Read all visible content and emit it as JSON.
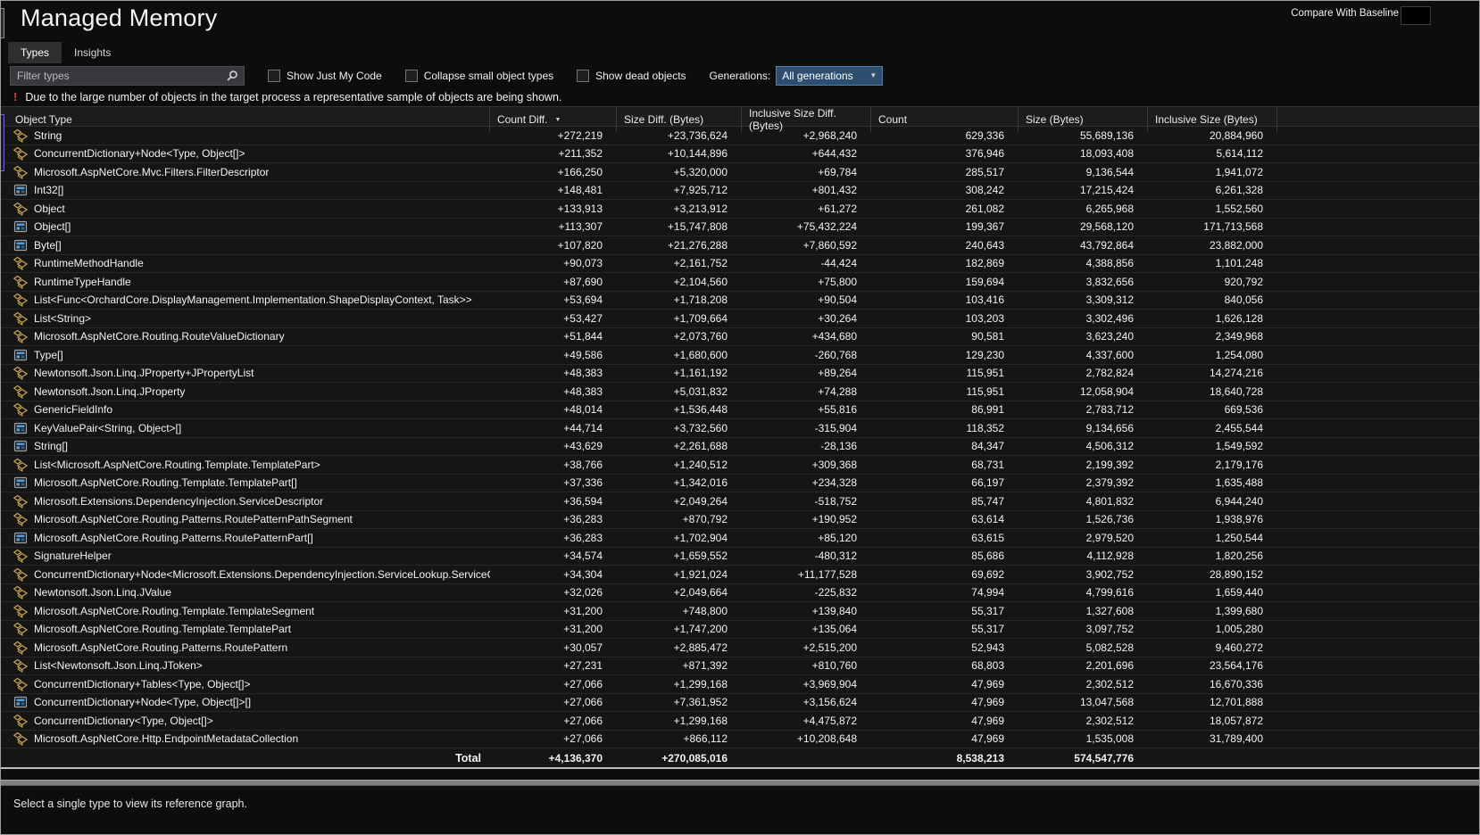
{
  "window": {
    "title": "Managed Memory",
    "compare_label": "Compare With Baseline"
  },
  "tabs": [
    {
      "label": "Types",
      "active": true
    },
    {
      "label": "Insights",
      "active": false
    }
  ],
  "toolbar": {
    "filter_placeholder": "Filter types",
    "checkboxes": [
      "Show Just My Code",
      "Collapse small object types",
      "Show dead objects"
    ],
    "generations_label": "Generations:",
    "generations_selected": "All generations"
  },
  "warning": "Due to the large number of objects in the target process a representative sample of objects are being shown.",
  "table": {
    "columns": [
      "Object Type",
      "Count Diff.",
      "Size Diff. (Bytes)",
      "Inclusive Size Diff. (Bytes)",
      "Count",
      "Size (Bytes)",
      "Inclusive Size (Bytes)"
    ],
    "sort_column": "Count Diff.",
    "sort_direction": "descending",
    "rows": [
      {
        "type": "String",
        "icon": "class",
        "values": [
          "+272,219",
          "+23,736,624",
          "+2,968,240",
          "629,336",
          "55,689,136",
          "20,884,960"
        ]
      },
      {
        "type": "ConcurrentDictionary+Node<Type, Object[]>",
        "icon": "class",
        "values": [
          "+211,352",
          "+10,144,896",
          "+644,432",
          "376,946",
          "18,093,408",
          "5,614,112"
        ]
      },
      {
        "type": "Microsoft.AspNetCore.Mvc.Filters.FilterDescriptor",
        "icon": "class",
        "values": [
          "+166,250",
          "+5,320,000",
          "+69,784",
          "285,517",
          "9,136,544",
          "1,941,072"
        ]
      },
      {
        "type": "Int32[]",
        "icon": "array",
        "values": [
          "+148,481",
          "+7,925,712",
          "+801,432",
          "308,242",
          "17,215,424",
          "6,261,328"
        ]
      },
      {
        "type": "Object",
        "icon": "class",
        "values": [
          "+133,913",
          "+3,213,912",
          "+61,272",
          "261,082",
          "6,265,968",
          "1,552,560"
        ]
      },
      {
        "type": "Object[]",
        "icon": "array",
        "values": [
          "+113,307",
          "+15,747,808",
          "+75,432,224",
          "199,367",
          "29,568,120",
          "171,713,568"
        ]
      },
      {
        "type": "Byte[]",
        "icon": "array",
        "values": [
          "+107,820",
          "+21,276,288",
          "+7,860,592",
          "240,643",
          "43,792,864",
          "23,882,000"
        ]
      },
      {
        "type": "RuntimeMethodHandle",
        "icon": "class",
        "values": [
          "+90,073",
          "+2,161,752",
          "-44,424",
          "182,869",
          "4,388,856",
          "1,101,248"
        ]
      },
      {
        "type": "RuntimeTypeHandle",
        "icon": "class",
        "values": [
          "+87,690",
          "+2,104,560",
          "+75,800",
          "159,694",
          "3,832,656",
          "920,792"
        ]
      },
      {
        "type": "List<Func<OrchardCore.DisplayManagement.Implementation.ShapeDisplayContext, Task>>",
        "icon": "class",
        "values": [
          "+53,694",
          "+1,718,208",
          "+90,504",
          "103,416",
          "3,309,312",
          "840,056"
        ]
      },
      {
        "type": "List<String>",
        "icon": "class",
        "values": [
          "+53,427",
          "+1,709,664",
          "+30,264",
          "103,203",
          "3,302,496",
          "1,626,128"
        ]
      },
      {
        "type": "Microsoft.AspNetCore.Routing.RouteValueDictionary",
        "icon": "class",
        "values": [
          "+51,844",
          "+2,073,760",
          "+434,680",
          "90,581",
          "3,623,240",
          "2,349,968"
        ]
      },
      {
        "type": "Type[]",
        "icon": "array",
        "values": [
          "+49,586",
          "+1,680,600",
          "-260,768",
          "129,230",
          "4,337,600",
          "1,254,080"
        ]
      },
      {
        "type": "Newtonsoft.Json.Linq.JProperty+JPropertyList",
        "icon": "class",
        "values": [
          "+48,383",
          "+1,161,192",
          "+89,264",
          "115,951",
          "2,782,824",
          "14,274,216"
        ]
      },
      {
        "type": "Newtonsoft.Json.Linq.JProperty",
        "icon": "class",
        "values": [
          "+48,383",
          "+5,031,832",
          "+74,288",
          "115,951",
          "12,058,904",
          "18,640,728"
        ]
      },
      {
        "type": "GenericFieldInfo",
        "icon": "class",
        "values": [
          "+48,014",
          "+1,536,448",
          "+55,816",
          "86,991",
          "2,783,712",
          "669,536"
        ]
      },
      {
        "type": "KeyValuePair<String, Object>[]",
        "icon": "array",
        "values": [
          "+44,714",
          "+3,732,560",
          "-315,904",
          "118,352",
          "9,134,656",
          "2,455,544"
        ]
      },
      {
        "type": "String[]",
        "icon": "array",
        "values": [
          "+43,629",
          "+2,261,688",
          "-28,136",
          "84,347",
          "4,506,312",
          "1,549,592"
        ]
      },
      {
        "type": "List<Microsoft.AspNetCore.Routing.Template.TemplatePart>",
        "icon": "class",
        "values": [
          "+38,766",
          "+1,240,512",
          "+309,368",
          "68,731",
          "2,199,392",
          "2,179,176"
        ]
      },
      {
        "type": "Microsoft.AspNetCore.Routing.Template.TemplatePart[]",
        "icon": "array",
        "values": [
          "+37,336",
          "+1,342,016",
          "+234,328",
          "66,197",
          "2,379,392",
          "1,635,488"
        ]
      },
      {
        "type": "Microsoft.Extensions.DependencyInjection.ServiceDescriptor",
        "icon": "class",
        "values": [
          "+36,594",
          "+2,049,264",
          "-518,752",
          "85,747",
          "4,801,832",
          "6,944,240"
        ]
      },
      {
        "type": "Microsoft.AspNetCore.Routing.Patterns.RoutePatternPathSegment",
        "icon": "class",
        "values": [
          "+36,283",
          "+870,792",
          "+190,952",
          "63,614",
          "1,526,736",
          "1,938,976"
        ]
      },
      {
        "type": "Microsoft.AspNetCore.Routing.Patterns.RoutePatternPart[]",
        "icon": "array",
        "values": [
          "+36,283",
          "+1,702,904",
          "+85,120",
          "63,615",
          "2,979,520",
          "1,250,544"
        ]
      },
      {
        "type": "SignatureHelper",
        "icon": "class",
        "values": [
          "+34,574",
          "+1,659,552",
          "-480,312",
          "85,686",
          "4,112,928",
          "1,820,256"
        ]
      },
      {
        "type": "ConcurrentDictionary+Node<Microsoft.Extensions.DependencyInjection.ServiceLookup.ServiceCache",
        "icon": "class",
        "values": [
          "+34,304",
          "+1,921,024",
          "+11,177,528",
          "69,692",
          "3,902,752",
          "28,890,152"
        ]
      },
      {
        "type": "Newtonsoft.Json.Linq.JValue",
        "icon": "class",
        "values": [
          "+32,026",
          "+2,049,664",
          "-225,832",
          "74,994",
          "4,799,616",
          "1,659,440"
        ]
      },
      {
        "type": "Microsoft.AspNetCore.Routing.Template.TemplateSegment",
        "icon": "class",
        "values": [
          "+31,200",
          "+748,800",
          "+139,840",
          "55,317",
          "1,327,608",
          "1,399,680"
        ]
      },
      {
        "type": "Microsoft.AspNetCore.Routing.Template.TemplatePart",
        "icon": "class",
        "values": [
          "+31,200",
          "+1,747,200",
          "+135,064",
          "55,317",
          "3,097,752",
          "1,005,280"
        ]
      },
      {
        "type": "Microsoft.AspNetCore.Routing.Patterns.RoutePattern",
        "icon": "class",
        "values": [
          "+30,057",
          "+2,885,472",
          "+2,515,200",
          "52,943",
          "5,082,528",
          "9,460,272"
        ]
      },
      {
        "type": "List<Newtonsoft.Json.Linq.JToken>",
        "icon": "class",
        "values": [
          "+27,231",
          "+871,392",
          "+810,760",
          "68,803",
          "2,201,696",
          "23,564,176"
        ]
      },
      {
        "type": "ConcurrentDictionary+Tables<Type, Object[]>",
        "icon": "class",
        "values": [
          "+27,066",
          "+1,299,168",
          "+3,969,904",
          "47,969",
          "2,302,512",
          "16,670,336"
        ]
      },
      {
        "type": "ConcurrentDictionary+Node<Type, Object[]>[]",
        "icon": "array",
        "values": [
          "+27,066",
          "+7,361,952",
          "+3,156,624",
          "47,969",
          "13,047,568",
          "12,701,888"
        ]
      },
      {
        "type": "ConcurrentDictionary<Type, Object[]>",
        "icon": "class",
        "values": [
          "+27,066",
          "+1,299,168",
          "+4,475,872",
          "47,969",
          "2,302,512",
          "18,057,872"
        ]
      },
      {
        "type": "Microsoft.AspNetCore.Http.EndpointMetadataCollection",
        "icon": "class",
        "values": [
          "+27,066",
          "+866,112",
          "+10,208,648",
          "47,969",
          "1,535,008",
          "31,789,400"
        ]
      }
    ],
    "total": {
      "label": "Total",
      "values": [
        "+4,136,370",
        "+270,085,016",
        "",
        "8,538,213",
        "574,547,776",
        ""
      ]
    }
  },
  "footer": "Select a single type to view its reference graph.",
  "colors": {
    "class_icon": "#C9A551",
    "array_icon": "#569CD6",
    "warning_accent": "#E03A3A",
    "combo_highlight": "#2D4E6E"
  }
}
